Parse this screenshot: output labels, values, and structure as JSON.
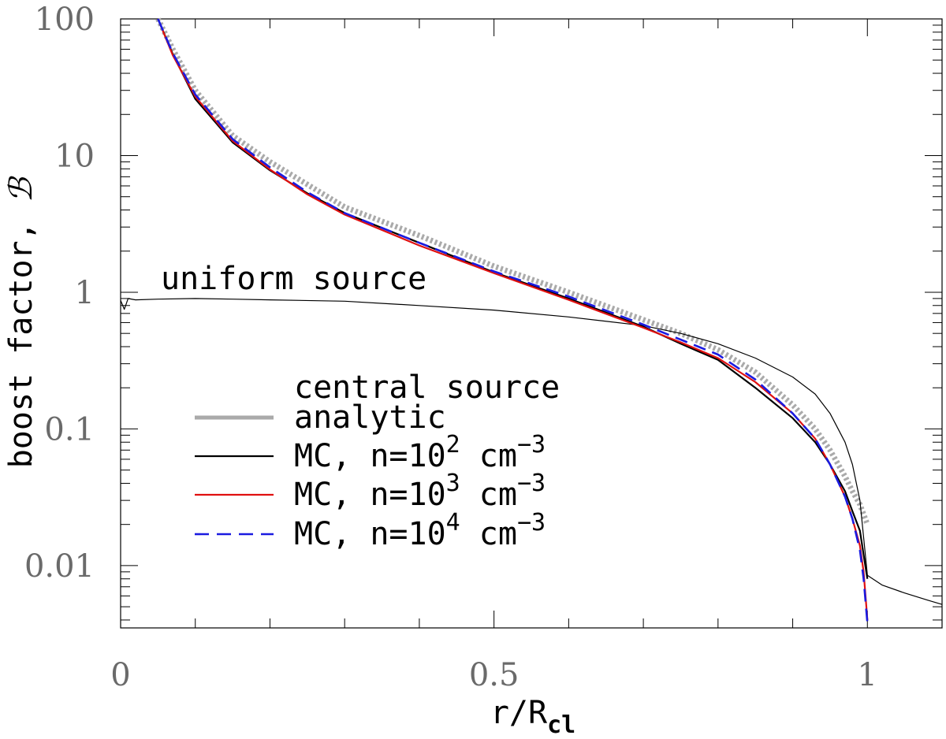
{
  "chart_data": {
    "type": "line",
    "xlabel": {
      "main": "r/R",
      "sub": "cl"
    },
    "ylabel": {
      "main": "boost factor, ",
      "symbol": "ℬ"
    },
    "xlim": [
      0,
      1.1
    ],
    "ylim": [
      0.0035,
      100
    ],
    "y_scale": "log",
    "x_ticks": [
      {
        "value": 0,
        "label": "0"
      },
      {
        "value": 0.5,
        "label": "0.5"
      },
      {
        "value": 1,
        "label": "1"
      }
    ],
    "y_ticks": [
      {
        "value": 100,
        "label": "100"
      },
      {
        "value": 10,
        "label": "10"
      },
      {
        "value": 1,
        "label": "1"
      },
      {
        "value": 0.1,
        "label": "0.1"
      },
      {
        "value": 0.01,
        "label": "0.01"
      }
    ],
    "annotations": [
      {
        "text": "uniform source",
        "anchor": "uniform-curve"
      }
    ],
    "legend": {
      "title": "central source",
      "placement": "lower-left",
      "entries": [
        {
          "series": "analytic",
          "label": {
            "pre": "analytic",
            "exp": "",
            "post": ""
          }
        },
        {
          "series": "mc2",
          "label": {
            "pre": "MC, n=10",
            "exp": "2",
            "post": " cm",
            "exp2": "−3"
          }
        },
        {
          "series": "mc3",
          "label": {
            "pre": "MC, n=10",
            "exp": "3",
            "post": " cm",
            "exp2": "−3"
          }
        },
        {
          "series": "mc4",
          "label": {
            "pre": "MC, n=10",
            "exp": "4",
            "post": " cm",
            "exp2": "−3"
          }
        }
      ]
    },
    "series": [
      {
        "id": "uniform",
        "name": "uniform source",
        "color": "#000000",
        "style": "thin-solid",
        "x": [
          0.0,
          0.005,
          0.01,
          0.02,
          0.05,
          0.1,
          0.15,
          0.2,
          0.3,
          0.4,
          0.5,
          0.6,
          0.7,
          0.75,
          0.8,
          0.85,
          0.9,
          0.93,
          0.95,
          0.97,
          0.98,
          0.99,
          1.0,
          1.02,
          1.05,
          1.08,
          1.1
        ],
        "y": [
          0.87,
          0.75,
          0.9,
          0.88,
          0.89,
          0.9,
          0.89,
          0.88,
          0.86,
          0.8,
          0.74,
          0.66,
          0.57,
          0.5,
          0.42,
          0.33,
          0.24,
          0.18,
          0.13,
          0.08,
          0.055,
          0.03,
          0.0085,
          0.0072,
          0.0063,
          0.0056,
          0.0052
        ]
      },
      {
        "id": "analytic",
        "name": "analytic",
        "color": "#aaaaaa",
        "style": "thick-dotted",
        "x": [
          0.05,
          0.07,
          0.1,
          0.15,
          0.2,
          0.3,
          0.4,
          0.5,
          0.6,
          0.7,
          0.75,
          0.8,
          0.85,
          0.9,
          0.93,
          0.95,
          0.97,
          0.98,
          0.99,
          1.0
        ],
        "y": [
          100,
          60,
          30,
          14,
          9,
          4.2,
          2.6,
          1.55,
          1.0,
          0.63,
          0.5,
          0.38,
          0.26,
          0.15,
          0.1,
          0.07,
          0.045,
          0.035,
          0.028,
          0.02
        ]
      },
      {
        "id": "mc2",
        "name": "MC, n=10^2 cm^-3",
        "color": "#000000",
        "style": "solid",
        "x": [
          0.05,
          0.07,
          0.1,
          0.15,
          0.2,
          0.25,
          0.3,
          0.4,
          0.5,
          0.6,
          0.7,
          0.75,
          0.8,
          0.85,
          0.9,
          0.93,
          0.95,
          0.97,
          0.98,
          0.99,
          0.995,
          1.0
        ],
        "y": [
          100,
          55,
          26,
          12.5,
          7.8,
          5.3,
          3.8,
          2.3,
          1.4,
          0.9,
          0.56,
          0.42,
          0.32,
          0.2,
          0.12,
          0.08,
          0.055,
          0.035,
          0.025,
          0.018,
          0.012,
          0.008
        ]
      },
      {
        "id": "mc3",
        "name": "MC, n=10^3 cm^-3",
        "color": "#e01010",
        "style": "solid",
        "x": [
          0.05,
          0.07,
          0.1,
          0.15,
          0.2,
          0.25,
          0.3,
          0.4,
          0.5,
          0.6,
          0.7,
          0.75,
          0.8,
          0.85,
          0.9,
          0.93,
          0.95,
          0.97,
          0.98,
          0.99,
          0.995,
          1.0
        ],
        "y": [
          100,
          54,
          27,
          12.8,
          7.9,
          5.2,
          3.7,
          2.2,
          1.38,
          0.88,
          0.55,
          0.43,
          0.33,
          0.22,
          0.13,
          0.085,
          0.055,
          0.032,
          0.022,
          0.014,
          0.009,
          0.004
        ]
      },
      {
        "id": "mc4",
        "name": "MC, n=10^4 cm^-3",
        "color": "#1a1ae0",
        "style": "dashed",
        "x": [
          0.05,
          0.07,
          0.1,
          0.15,
          0.2,
          0.25,
          0.3,
          0.4,
          0.5,
          0.6,
          0.7,
          0.75,
          0.8,
          0.85,
          0.9,
          0.93,
          0.95,
          0.97,
          0.98,
          0.99,
          0.995,
          1.0
        ],
        "y": [
          100,
          56,
          28,
          13.2,
          8.2,
          5.4,
          3.8,
          2.3,
          1.42,
          0.93,
          0.58,
          0.45,
          0.35,
          0.23,
          0.13,
          0.085,
          0.055,
          0.032,
          0.022,
          0.013,
          0.008,
          0.0038
        ]
      }
    ]
  }
}
